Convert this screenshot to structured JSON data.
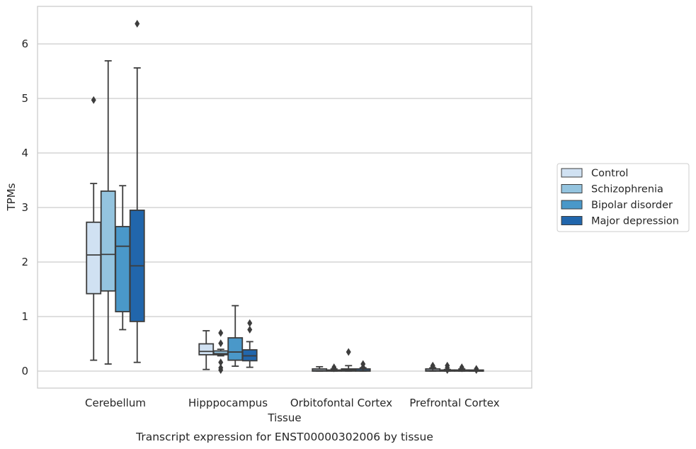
{
  "chart_data": {
    "type": "box",
    "xlabel": "Tissue",
    "ylabel": "TPMs",
    "caption": "Transcript expression for ENST00000302006 by tissue",
    "ylim": [
      -0.3,
      6.7
    ],
    "yticks": [
      "0",
      "1",
      "2",
      "3",
      "4",
      "5",
      "6"
    ],
    "grid": true,
    "legend_position": "right",
    "categories": [
      "Cerebellum",
      "Hipppocampus",
      "Orbitofontal Cortex",
      "Prefrontal Cortex"
    ],
    "series": [
      {
        "name": "Control",
        "color": "#d0e1f2",
        "boxes": [
          {
            "whisker_low": 0.2,
            "q1": 1.42,
            "median": 2.13,
            "q3": 2.73,
            "whisker_high": 3.44,
            "outliers": [
              4.97
            ]
          },
          {
            "whisker_low": 0.03,
            "q1": 0.3,
            "median": 0.36,
            "q3": 0.5,
            "whisker_high": 0.74,
            "outliers": []
          },
          {
            "whisker_low": 0.0,
            "q1": 0.0,
            "median": 0.01,
            "q3": 0.04,
            "whisker_high": 0.08,
            "outliers": []
          },
          {
            "whisker_low": 0.0,
            "q1": 0.0,
            "median": 0.01,
            "q3": 0.04,
            "whisker_high": 0.06,
            "outliers": [
              0.1,
              0.08
            ]
          }
        ]
      },
      {
        "name": "Schizophrenia",
        "color": "#94c4df",
        "boxes": [
          {
            "whisker_low": 0.13,
            "q1": 1.47,
            "median": 2.14,
            "q3": 3.3,
            "whisker_high": 5.69,
            "outliers": []
          },
          {
            "whisker_low": 0.28,
            "q1": 0.3,
            "median": 0.32,
            "q3": 0.37,
            "whisker_high": 0.4,
            "outliers": [
              0.7,
              0.51,
              0.16,
              0.06,
              0.02
            ]
          },
          {
            "whisker_low": 0.0,
            "q1": 0.0,
            "median": 0.01,
            "q3": 0.02,
            "whisker_high": 0.04,
            "outliers": [
              0.07,
              0.05
            ]
          },
          {
            "whisker_low": 0.0,
            "q1": 0.0,
            "median": 0.01,
            "q3": 0.02,
            "whisker_high": 0.03,
            "outliers": [
              0.1,
              0.06,
              0.02
            ]
          }
        ]
      },
      {
        "name": "Bipolar disorder",
        "color": "#4a98c9",
        "boxes": [
          {
            "whisker_low": 0.76,
            "q1": 1.09,
            "median": 2.29,
            "q3": 2.65,
            "whisker_high": 3.4,
            "outliers": []
          },
          {
            "whisker_low": 0.09,
            "q1": 0.2,
            "median": 0.35,
            "q3": 0.61,
            "whisker_high": 1.2,
            "outliers": []
          },
          {
            "whisker_low": 0.0,
            "q1": 0.0,
            "median": 0.02,
            "q3": 0.04,
            "whisker_high": 0.1,
            "outliers": [
              0.35
            ]
          },
          {
            "whisker_low": 0.0,
            "q1": 0.0,
            "median": 0.01,
            "q3": 0.02,
            "whisker_high": 0.04,
            "outliers": [
              0.07,
              0.05
            ]
          }
        ]
      },
      {
        "name": "Major depression",
        "color": "#2166ac",
        "boxes": [
          {
            "whisker_low": 0.16,
            "q1": 0.91,
            "median": 1.93,
            "q3": 2.95,
            "whisker_high": 5.56,
            "outliers": [
              6.37
            ]
          },
          {
            "whisker_low": 0.07,
            "q1": 0.19,
            "median": 0.28,
            "q3": 0.39,
            "whisker_high": 0.54,
            "outliers": [
              0.88,
              0.76
            ]
          },
          {
            "whisker_low": 0.0,
            "q1": 0.0,
            "median": 0.01,
            "q3": 0.04,
            "whisker_high": 0.06,
            "outliers": [
              0.13,
              0.07
            ]
          },
          {
            "whisker_low": 0.0,
            "q1": 0.0,
            "median": 0.0,
            "q3": 0.01,
            "whisker_high": 0.01,
            "outliers": [
              0.04,
              0.02
            ]
          }
        ]
      }
    ]
  }
}
